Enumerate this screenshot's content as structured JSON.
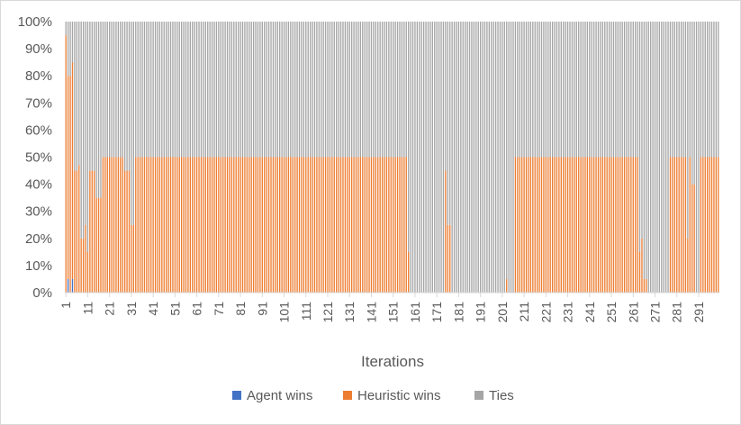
{
  "chart_data": {
    "type": "bar",
    "stacked": "percent",
    "title": "",
    "xlabel": "Iterations",
    "ylabel": "",
    "n_iterations": 300,
    "ylim": [
      0,
      100
    ],
    "y_tick_labels": [
      "0%",
      "10%",
      "20%",
      "30%",
      "40%",
      "50%",
      "60%",
      "70%",
      "80%",
      "90%",
      "100%"
    ],
    "x_tick_labels": [
      "1",
      "11",
      "21",
      "31",
      "41",
      "51",
      "61",
      "71",
      "81",
      "91",
      "101",
      "111",
      "121",
      "131",
      "141",
      "151",
      "161",
      "171",
      "181",
      "191",
      "201",
      "211",
      "221",
      "231",
      "241",
      "251",
      "261",
      "271",
      "281",
      "291"
    ],
    "grid": false,
    "legend": "bottom",
    "colors": {
      "agent": "#4472c4",
      "heuristic": "#ed7d31",
      "ties": "#a5a5a5"
    },
    "series": [
      {
        "name": "Agent wins",
        "color": "#4472c4",
        "segments": [
          {
            "from": 2,
            "to": 2,
            "value": 5
          },
          {
            "from": 4,
            "to": 4,
            "value": 5
          }
        ]
      },
      {
        "name": "Heuristic wins",
        "color": "#ed7d31",
        "segments": [
          {
            "from": 1,
            "to": 1,
            "value": 95
          },
          {
            "from": 2,
            "to": 2,
            "value": 75
          },
          {
            "from": 3,
            "to": 3,
            "value": 80
          },
          {
            "from": 4,
            "to": 4,
            "value": 80
          },
          {
            "from": 5,
            "to": 6,
            "value": 45
          },
          {
            "from": 7,
            "to": 7,
            "value": 47
          },
          {
            "from": 8,
            "to": 9,
            "value": 20
          },
          {
            "from": 10,
            "to": 10,
            "value": 25
          },
          {
            "from": 11,
            "to": 11,
            "value": 15
          },
          {
            "from": 12,
            "to": 14,
            "value": 45
          },
          {
            "from": 15,
            "to": 17,
            "value": 35
          },
          {
            "from": 18,
            "to": 27,
            "value": 50
          },
          {
            "from": 28,
            "to": 30,
            "value": 45
          },
          {
            "from": 31,
            "to": 32,
            "value": 25
          },
          {
            "from": 33,
            "to": 157,
            "value": 50
          },
          {
            "from": 158,
            "to": 158,
            "value": 15
          },
          {
            "from": 159,
            "to": 174,
            "value": 0
          },
          {
            "from": 175,
            "to": 175,
            "value": 45
          },
          {
            "from": 176,
            "to": 177,
            "value": 25
          },
          {
            "from": 178,
            "to": 202,
            "value": 0
          },
          {
            "from": 203,
            "to": 203,
            "value": 5
          },
          {
            "from": 204,
            "to": 206,
            "value": 0
          },
          {
            "from": 207,
            "to": 263,
            "value": 50
          },
          {
            "from": 264,
            "to": 264,
            "value": 15
          },
          {
            "from": 265,
            "to": 265,
            "value": 20
          },
          {
            "from": 266,
            "to": 267,
            "value": 5
          },
          {
            "from": 268,
            "to": 277,
            "value": 0
          },
          {
            "from": 278,
            "to": 285,
            "value": 50
          },
          {
            "from": 286,
            "to": 286,
            "value": 20
          },
          {
            "from": 287,
            "to": 287,
            "value": 50
          },
          {
            "from": 288,
            "to": 289,
            "value": 40
          },
          {
            "from": 290,
            "to": 291,
            "value": 0
          },
          {
            "from": 292,
            "to": 300,
            "value": 50
          }
        ]
      },
      {
        "name": "Ties",
        "color": "#a5a5a5",
        "note_remainder": true
      }
    ]
  }
}
